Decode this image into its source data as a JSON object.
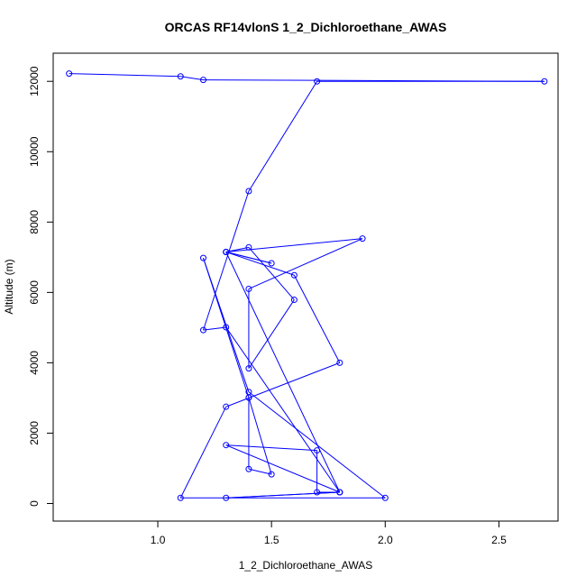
{
  "chart_data": {
    "type": "line",
    "title": "ORCAS RF14vlonS 1_2_Dichloroethane_AWAS",
    "xlabel": "1_2_Dichloroethane_AWAS",
    "ylabel": "Altitude (m)",
    "xlim": [
      0.54,
      2.76
    ],
    "ylim": [
      -500,
      12800
    ],
    "xticks": [
      1.0,
      1.5,
      2.0,
      2.5
    ],
    "xtick_labels": [
      "1.0",
      "1.5",
      "2.0",
      "2.5"
    ],
    "yticks": [
      0,
      2000,
      4000,
      6000,
      8000,
      10000,
      12000
    ],
    "ytick_labels": [
      "0",
      "2000",
      "4000",
      "6000",
      "8000",
      "10000",
      "12000"
    ],
    "grid": false,
    "colors": {
      "series": "#0000ff",
      "axes": "#000000",
      "background": "#ffffff"
    },
    "series": [
      {
        "marker": "open-circle",
        "points": [
          [
            0.61,
            12220
          ],
          [
            1.1,
            12140
          ],
          [
            1.2,
            12040
          ],
          [
            2.7,
            12000
          ],
          [
            1.7,
            12000
          ],
          [
            1.4,
            8880
          ],
          [
            1.2,
            4930
          ],
          [
            1.3,
            5010
          ],
          [
            1.8,
            320
          ],
          [
            1.3,
            160
          ],
          [
            1.8,
            320
          ],
          [
            1.7,
            320
          ],
          [
            1.7,
            1510
          ],
          [
            1.3,
            1660
          ],
          [
            1.8,
            320
          ],
          [
            1.3,
            7150
          ],
          [
            1.5,
            6830
          ],
          [
            1.3,
            7150
          ],
          [
            1.9,
            7530
          ],
          [
            1.4,
            6100
          ],
          [
            1.4,
            3840
          ],
          [
            1.6,
            5790
          ],
          [
            1.4,
            7280
          ],
          [
            1.3,
            7150
          ],
          [
            1.6,
            6490
          ],
          [
            1.8,
            4000
          ],
          [
            1.3,
            2750
          ],
          [
            1.1,
            160
          ],
          [
            2.0,
            160
          ],
          [
            1.4,
            3170
          ],
          [
            1.2,
            6980
          ],
          [
            1.4,
            3010
          ],
          [
            1.5,
            830
          ],
          [
            1.4,
            980
          ],
          [
            1.4,
            3010
          ]
        ]
      }
    ]
  }
}
